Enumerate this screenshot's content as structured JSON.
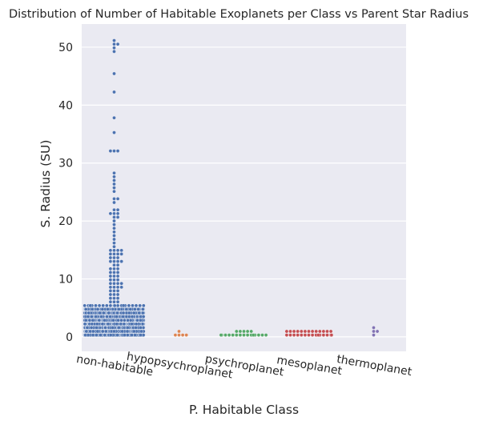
{
  "chart_data": {
    "type": "scatter",
    "subtype": "swarm",
    "title": "Distribution of Number of Habitable Exoplanets per Class vs Parent Star Radius",
    "xlabel": "P. Habitable Class",
    "ylabel": "S. Radius (SU)",
    "ylim": [
      -2.5,
      54
    ],
    "y_ticks": [
      0,
      10,
      20,
      30,
      40,
      50
    ],
    "grid": true,
    "categories": [
      "non-habitable",
      "hypopsychroplanet",
      "psychroplanet",
      "mesoplanet",
      "thermoplanet"
    ],
    "colors": [
      "#4c72b0",
      "#dd8452",
      "#55a868",
      "#c44e52",
      "#8172b3"
    ],
    "series": [
      {
        "values": [
          51.2,
          50.6,
          50.5,
          50.0,
          49.3,
          45.2,
          42.1,
          38.1,
          35.1,
          32.4,
          32.1,
          32.0,
          28.0,
          27.4,
          27.0,
          26.4,
          25.6,
          24.8,
          24.0,
          23.6,
          23.5,
          22.2,
          21.8,
          21.3,
          21.1,
          21.0,
          20.9,
          20.6,
          20.3,
          19.6,
          18.9,
          18.0,
          17.6,
          17.0,
          16.3,
          15.7,
          15.2,
          15.0,
          14.8,
          14.7,
          14.5,
          14.4,
          14.2,
          14.0,
          13.9,
          13.7,
          13.5,
          13.3,
          13.1,
          13.0,
          12.8,
          12.5,
          12.3,
          12.0,
          11.8,
          11.5,
          11.3,
          11.0,
          10.9,
          10.7,
          10.5,
          10.3,
          10.1,
          9.9,
          9.7,
          9.5,
          9.3,
          9.2,
          9.0,
          8.8,
          8.6,
          8.5,
          8.3,
          8.1,
          7.9,
          7.7,
          7.5,
          7.3,
          7.1,
          6.9,
          6.7,
          6.5,
          6.3,
          6.1,
          5.9,
          5.7,
          5.5,
          5.3
        ],
        "dense_band": {
          "min": 0.15,
          "max": 5.2,
          "count": 1100
        }
      },
      {
        "values": [
          0.3,
          0.45,
          0.6,
          0.55,
          0.7
        ]
      },
      {
        "values": [
          0.2,
          0.25,
          0.3,
          0.3,
          0.35,
          0.35,
          0.4,
          0.4,
          0.45,
          0.45,
          0.5,
          0.5,
          0.55,
          0.6,
          0.6,
          0.65,
          0.7,
          0.75,
          0.8,
          0.9
        ]
      },
      {
        "values": [
          0.3,
          0.3,
          0.35,
          0.4,
          0.4,
          0.45,
          0.45,
          0.5,
          0.5,
          0.5,
          0.55,
          0.55,
          0.6,
          0.6,
          0.6,
          0.65,
          0.65,
          0.7,
          0.7,
          0.75,
          0.75,
          0.8,
          0.8,
          0.85,
          0.9,
          0.95,
          1.0,
          1.05
        ]
      },
      {
        "values": [
          0.5,
          0.8,
          1.05,
          1.3
        ]
      }
    ]
  }
}
